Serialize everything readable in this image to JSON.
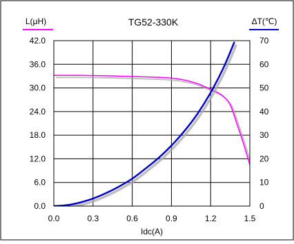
{
  "chart_data": {
    "type": "line",
    "title": "TG52-330K",
    "xlabel": "Idc(A)",
    "ylabel_left": "L(μH)",
    "ylabel_right": "ΔT(℃)",
    "xlim": [
      0,
      1.5
    ],
    "ylim_left": [
      0,
      42
    ],
    "ylim_right": [
      0,
      70
    ],
    "x_ticks": [
      "0.0",
      "0.3",
      "0.6",
      "0.9",
      "1.2",
      "1.5"
    ],
    "y_ticks_left": [
      "0.0",
      "6.0",
      "12.0",
      "18.0",
      "24.0",
      "30.0",
      "36.0",
      "42.0"
    ],
    "y_ticks_right": [
      "0",
      "10",
      "20",
      "30",
      "40",
      "50",
      "60",
      "70"
    ],
    "grid": true,
    "colors": {
      "inductance": "#ff00ff",
      "temperature": "#0000cc",
      "shadow": "#aaaaaa",
      "frame": "#000000"
    },
    "series": [
      {
        "axis": "left",
        "color": "#ff00ff",
        "x": [
          0,
          0.2,
          0.4,
          0.6,
          0.8,
          0.9,
          1.0,
          1.1,
          1.15,
          1.2,
          1.25,
          1.3,
          1.35,
          1.4,
          1.45,
          1.5
        ],
        "y": [
          33.2,
          33.2,
          33.1,
          32.9,
          32.7,
          32.5,
          32.0,
          31.1,
          30.4,
          29.7,
          28.9,
          27.8,
          25.7,
          21.0,
          16.0,
          10.5
        ]
      },
      {
        "axis": "right",
        "color": "#0000cc",
        "x": [
          0,
          0.1,
          0.2,
          0.3,
          0.4,
          0.5,
          0.6,
          0.7,
          0.8,
          0.9,
          1.0,
          1.1,
          1.2,
          1.3,
          1.38
        ],
        "y": [
          0,
          0.4,
          1.5,
          3.2,
          5.5,
          8.3,
          11.6,
          15.8,
          20.3,
          25.6,
          31.8,
          39.1,
          48.0,
          58.7,
          69.2
        ]
      }
    ]
  }
}
